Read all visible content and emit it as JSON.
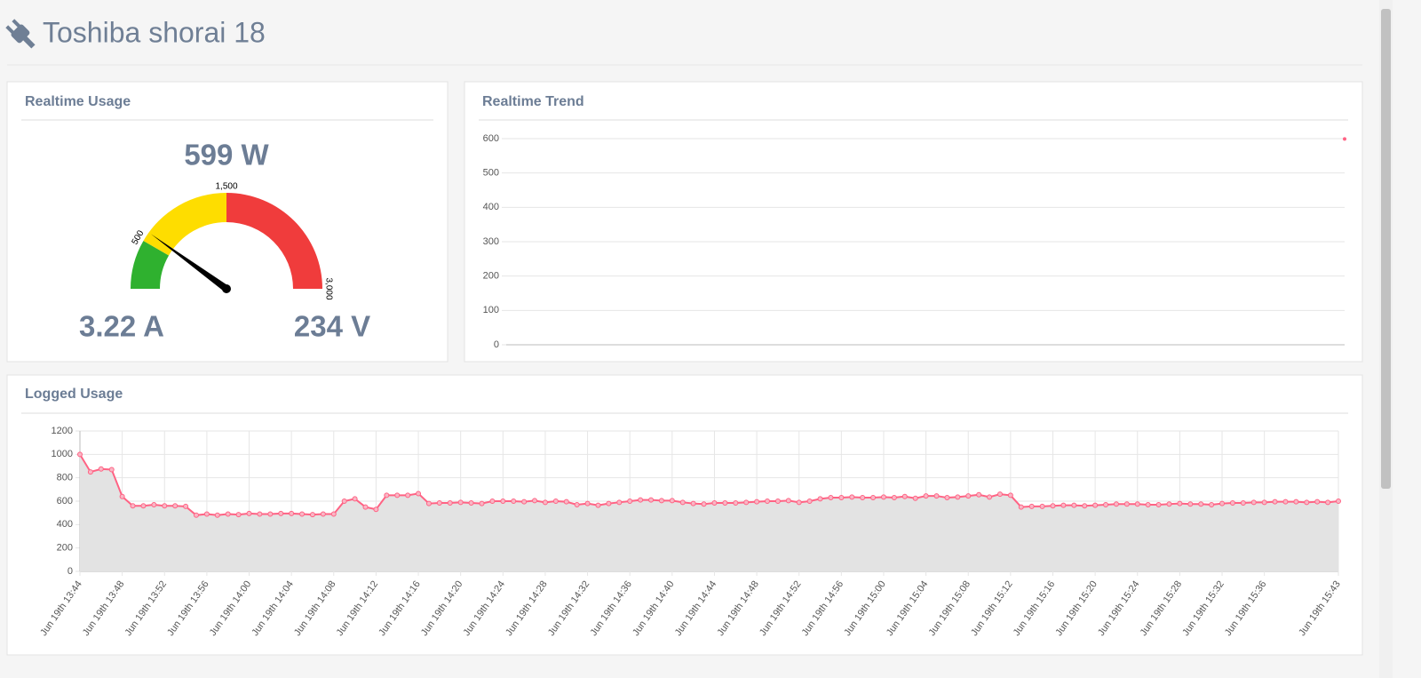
{
  "header": {
    "title": "Toshiba shorai 18"
  },
  "chart_data": [
    {
      "type": "gauge",
      "title": "Realtime Usage",
      "values": [
        599
      ],
      "value_labels": [
        "599 W"
      ],
      "readings": [
        "3.22 A",
        "234 V"
      ],
      "ylim": [
        0,
        3000
      ],
      "yticks": [
        500,
        {
          "value": 1500,
          "label": "1,500"
        },
        {
          "value": 3000,
          "label": "3,000"
        }
      ],
      "bands": [
        {
          "to": 500,
          "color": "#2fb12f"
        },
        {
          "to": 1500,
          "color": "#fedd00"
        },
        {
          "to": 3000,
          "color": "#f03c3c"
        }
      ],
      "needle_color": "#000000"
    },
    {
      "type": "line",
      "title": "Realtime Trend",
      "values": [
        599
      ],
      "color": "#ff6384",
      "ylim": [
        0,
        600
      ],
      "yticks": [
        0,
        100,
        200,
        300,
        400,
        500,
        600
      ],
      "grid": true
    },
    {
      "type": "line",
      "title": "Logged Usage",
      "color": "#ff6384",
      "fill_color": "#e3e3e3",
      "ylim": [
        0,
        1200
      ],
      "yticks": [
        0,
        200,
        400,
        600,
        800,
        1000,
        1200
      ],
      "grid": true,
      "categories": [
        "Jun 19th 13:44",
        null,
        null,
        null,
        "Jun 19th 13:48",
        null,
        null,
        null,
        "Jun 19th 13:52",
        null,
        null,
        null,
        "Jun 19th 13:56",
        null,
        null,
        null,
        "Jun 19th 14:00",
        null,
        null,
        null,
        "Jun 19th 14:04",
        null,
        null,
        null,
        "Jun 19th 14:08",
        null,
        null,
        null,
        "Jun 19th 14:12",
        null,
        null,
        null,
        "Jun 19th 14:16",
        null,
        null,
        null,
        "Jun 19th 14:20",
        null,
        null,
        null,
        "Jun 19th 14:24",
        null,
        null,
        null,
        "Jun 19th 14:28",
        null,
        null,
        null,
        "Jun 19th 14:32",
        null,
        null,
        null,
        "Jun 19th 14:36",
        null,
        null,
        null,
        "Jun 19th 14:40",
        null,
        null,
        null,
        "Jun 19th 14:44",
        null,
        null,
        null,
        "Jun 19th 14:48",
        null,
        null,
        null,
        "Jun 19th 14:52",
        null,
        null,
        null,
        "Jun 19th 14:56",
        null,
        null,
        null,
        "Jun 19th 15:00",
        null,
        null,
        null,
        "Jun 19th 15:04",
        null,
        null,
        null,
        "Jun 19th 15:08",
        null,
        null,
        null,
        "Jun 19th 15:12",
        null,
        null,
        null,
        "Jun 19th 15:16",
        null,
        null,
        null,
        "Jun 19th 15:20",
        null,
        null,
        null,
        "Jun 19th 15:24",
        null,
        null,
        null,
        "Jun 19th 15:28",
        null,
        null,
        null,
        "Jun 19th 15:32",
        null,
        null,
        null,
        "Jun 19th 15:36",
        null,
        null,
        null,
        null,
        null,
        null,
        "Jun 19th 15:43"
      ],
      "values": [
        1000,
        850,
        875,
        870,
        640,
        560,
        560,
        570,
        560,
        560,
        555,
        480,
        490,
        480,
        490,
        485,
        495,
        490,
        490,
        495,
        495,
        490,
        485,
        490,
        490,
        600,
        620,
        550,
        530,
        650,
        650,
        650,
        665,
        580,
        585,
        585,
        590,
        585,
        580,
        600,
        600,
        600,
        595,
        605,
        590,
        600,
        595,
        570,
        580,
        565,
        580,
        590,
        600,
        610,
        610,
        605,
        605,
        590,
        580,
        575,
        585,
        585,
        585,
        590,
        595,
        600,
        600,
        605,
        590,
        600,
        620,
        630,
        630,
        635,
        630,
        630,
        635,
        630,
        640,
        625,
        645,
        645,
        630,
        635,
        645,
        655,
        635,
        660,
        650,
        550,
        555,
        555,
        560,
        565,
        565,
        560,
        565,
        570,
        575,
        575,
        575,
        570,
        570,
        575,
        580,
        575,
        575,
        570,
        580,
        585,
        585,
        590,
        590,
        595,
        595,
        595,
        590,
        595,
        590,
        600
      ]
    }
  ]
}
